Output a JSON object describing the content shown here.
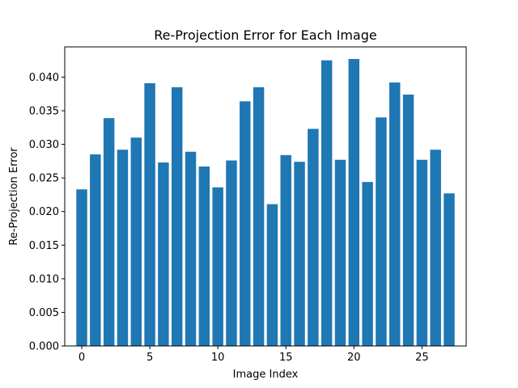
{
  "chart_data": {
    "type": "bar",
    "title": "Re-Projection Error for Each Image",
    "xlabel": "Image Index",
    "ylabel": "Re-Projection Error",
    "x": [
      0,
      1,
      2,
      3,
      4,
      5,
      6,
      7,
      8,
      9,
      10,
      11,
      12,
      13,
      14,
      15,
      16,
      17,
      18,
      19,
      20,
      21,
      22,
      23,
      24,
      25,
      26,
      27
    ],
    "values": [
      0.0233,
      0.0285,
      0.0339,
      0.0292,
      0.031,
      0.0391,
      0.0273,
      0.0385,
      0.0289,
      0.0267,
      0.0236,
      0.0276,
      0.0364,
      0.0385,
      0.0211,
      0.0284,
      0.0274,
      0.0323,
      0.0425,
      0.0277,
      0.0427,
      0.0244,
      0.034,
      0.0392,
      0.0374,
      0.0277,
      0.0292,
      0.0227
    ],
    "xlim": [
      -1.25,
      28.25
    ],
    "ylim": [
      0,
      0.0445
    ],
    "xticks": [
      0,
      5,
      10,
      15,
      20,
      25
    ],
    "xtick_labels": [
      "0",
      "5",
      "10",
      "15",
      "20",
      "25"
    ],
    "yticks": [
      0,
      0.005,
      0.01,
      0.015,
      0.02,
      0.025,
      0.03,
      0.035,
      0.04
    ],
    "ytick_labels": [
      "0.000",
      "0.005",
      "0.010",
      "0.015",
      "0.020",
      "0.025",
      "0.030",
      "0.035",
      "0.040"
    ],
    "bar_color": "#1f77b4",
    "grid": false,
    "legend": "none"
  }
}
